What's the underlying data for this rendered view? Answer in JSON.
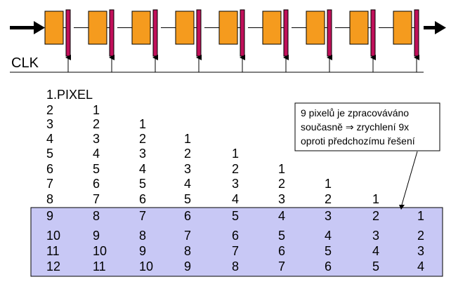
{
  "pipeline": {
    "stage_count": 9,
    "colors": {
      "block_fill": "#f59b1e",
      "block_stroke": "#000000",
      "register_fill": "#c0105a",
      "arrow": "#000000"
    },
    "clock_label": "CLK"
  },
  "table": {
    "header": "1.PIXEL",
    "rows": [
      [
        "2",
        "1"
      ],
      [
        "3",
        "2",
        "1"
      ],
      [
        "4",
        "3",
        "2",
        "1"
      ],
      [
        "5",
        "4",
        "3",
        "2",
        "1"
      ],
      [
        "6",
        "5",
        "4",
        "3",
        "2",
        "1"
      ],
      [
        "7",
        "6",
        "5",
        "4",
        "3",
        "2",
        "1"
      ],
      [
        "8",
        "7",
        "6",
        "5",
        "4",
        "3",
        "2",
        "1"
      ],
      [
        "9",
        "8",
        "7",
        "6",
        "5",
        "4",
        "3",
        "2",
        "1"
      ],
      [
        "10",
        "9",
        "8",
        "7",
        "6",
        "5",
        "4",
        "3",
        "2"
      ],
      [
        "11",
        "10",
        "9",
        "8",
        "7",
        "6",
        "5",
        "4",
        "3"
      ],
      [
        "12",
        "11",
        "10",
        "9",
        "8",
        "7",
        "6",
        "5",
        "4"
      ]
    ],
    "highlight_color": "#c8c8f5",
    "highlight_border": "#000000"
  },
  "callout": {
    "lines": [
      "9 pixelů je zpracováváno",
      "současně ⇒ zrychlení 9x",
      "oproti předchozímu řešení"
    ]
  }
}
